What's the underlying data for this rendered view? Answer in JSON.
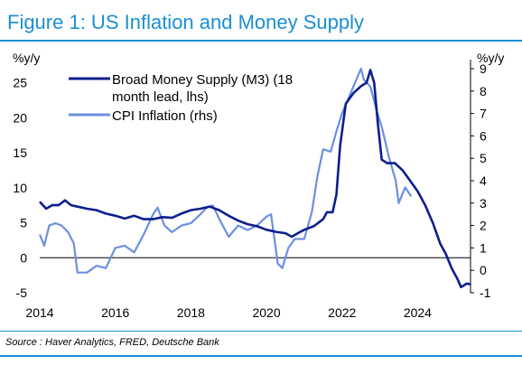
{
  "title": "Figure 1: US Inflation and Money Supply",
  "source": "Source : Haver Analytics, FRED, Deutsche Bank",
  "colors": {
    "title": "#1b8fd4",
    "m3": "#0d1f8c",
    "cpi": "#6d8fe0"
  },
  "chart_data": {
    "type": "line",
    "ylabel_left": "%y/y",
    "ylabel_right": "%y/y",
    "xlim": [
      2014,
      2025.4
    ],
    "ylim_left": [
      -5,
      27
    ],
    "ylim_right": [
      -1,
      9
    ],
    "x_ticks": [
      "2014",
      "2016",
      "2018",
      "2020",
      "2022",
      "2024"
    ],
    "y_left_ticks": [
      "-5",
      "0",
      "5",
      "10",
      "15",
      "20",
      "25"
    ],
    "y_right_ticks": [
      "-1",
      "0",
      "1",
      "2",
      "3",
      "4",
      "5",
      "6",
      "7",
      "8",
      "9"
    ],
    "legend_position": "top-left",
    "series": [
      {
        "name": "Broad Money Supply (M3) (18 month lead, lhs)",
        "axis": "left",
        "points": [
          [
            2014.0,
            8.0
          ],
          [
            2014.17,
            7.0
          ],
          [
            2014.33,
            7.5
          ],
          [
            2014.5,
            7.5
          ],
          [
            2014.67,
            8.2
          ],
          [
            2014.83,
            7.5
          ],
          [
            2015.0,
            7.3
          ],
          [
            2015.25,
            7.0
          ],
          [
            2015.5,
            6.8
          ],
          [
            2015.75,
            6.3
          ],
          [
            2016.0,
            6.0
          ],
          [
            2016.25,
            5.6
          ],
          [
            2016.5,
            6.0
          ],
          [
            2016.75,
            5.5
          ],
          [
            2017.0,
            5.5
          ],
          [
            2017.25,
            5.8
          ],
          [
            2017.5,
            5.7
          ],
          [
            2017.75,
            6.3
          ],
          [
            2018.0,
            6.8
          ],
          [
            2018.25,
            7.0
          ],
          [
            2018.5,
            7.3
          ],
          [
            2018.75,
            6.8
          ],
          [
            2019.0,
            6.0
          ],
          [
            2019.25,
            5.3
          ],
          [
            2019.5,
            4.8
          ],
          [
            2019.75,
            4.5
          ],
          [
            2020.0,
            4.0
          ],
          [
            2020.25,
            3.7
          ],
          [
            2020.5,
            3.5
          ],
          [
            2020.67,
            3.0
          ],
          [
            2020.83,
            3.5
          ],
          [
            2021.0,
            4.0
          ],
          [
            2021.25,
            4.5
          ],
          [
            2021.5,
            5.5
          ],
          [
            2021.6,
            6.5
          ],
          [
            2021.75,
            6.5
          ],
          [
            2021.85,
            9.0
          ],
          [
            2021.95,
            16.0
          ],
          [
            2022.1,
            22.0
          ],
          [
            2022.3,
            23.5
          ],
          [
            2022.5,
            24.5
          ],
          [
            2022.65,
            25.0
          ],
          [
            2022.75,
            26.8
          ],
          [
            2022.85,
            25.0
          ],
          [
            2022.95,
            19.0
          ],
          [
            2023.05,
            14.0
          ],
          [
            2023.2,
            13.5
          ],
          [
            2023.4,
            13.5
          ],
          [
            2023.6,
            12.5
          ],
          [
            2023.8,
            11.0
          ],
          [
            2024.0,
            9.5
          ],
          [
            2024.2,
            7.5
          ],
          [
            2024.4,
            5.0
          ],
          [
            2024.6,
            2.0
          ],
          [
            2024.75,
            0.5
          ],
          [
            2024.9,
            -1.5
          ],
          [
            2025.05,
            -3.0
          ],
          [
            2025.15,
            -4.2
          ],
          [
            2025.3,
            -3.7
          ],
          [
            2025.4,
            -3.8
          ]
        ]
      },
      {
        "name": "CPI Inflation (rhs)",
        "axis": "right",
        "points": [
          [
            2014.0,
            1.6
          ],
          [
            2014.12,
            1.1
          ],
          [
            2014.25,
            2.0
          ],
          [
            2014.42,
            2.1
          ],
          [
            2014.58,
            2.0
          ],
          [
            2014.75,
            1.7
          ],
          [
            2014.9,
            1.2
          ],
          [
            2015.0,
            -0.1
          ],
          [
            2015.25,
            -0.1
          ],
          [
            2015.5,
            0.2
          ],
          [
            2015.75,
            0.1
          ],
          [
            2016.0,
            1.0
          ],
          [
            2016.25,
            1.1
          ],
          [
            2016.5,
            0.8
          ],
          [
            2016.75,
            1.6
          ],
          [
            2017.0,
            2.5
          ],
          [
            2017.12,
            2.8
          ],
          [
            2017.3,
            2.0
          ],
          [
            2017.5,
            1.7
          ],
          [
            2017.75,
            2.0
          ],
          [
            2018.0,
            2.1
          ],
          [
            2018.25,
            2.5
          ],
          [
            2018.42,
            2.8
          ],
          [
            2018.58,
            2.9
          ],
          [
            2018.75,
            2.3
          ],
          [
            2019.0,
            1.5
          ],
          [
            2019.25,
            2.0
          ],
          [
            2019.5,
            1.8
          ],
          [
            2019.75,
            2.0
          ],
          [
            2020.0,
            2.4
          ],
          [
            2020.12,
            2.5
          ],
          [
            2020.3,
            0.3
          ],
          [
            2020.42,
            0.1
          ],
          [
            2020.58,
            1.0
          ],
          [
            2020.75,
            1.4
          ],
          [
            2021.0,
            1.4
          ],
          [
            2021.2,
            2.6
          ],
          [
            2021.35,
            4.2
          ],
          [
            2021.5,
            5.4
          ],
          [
            2021.7,
            5.3
          ],
          [
            2021.85,
            6.2
          ],
          [
            2022.0,
            7.0
          ],
          [
            2022.25,
            8.0
          ],
          [
            2022.5,
            9.0
          ],
          [
            2022.58,
            8.5
          ],
          [
            2022.75,
            8.2
          ],
          [
            2022.92,
            7.1
          ],
          [
            2023.05,
            6.4
          ],
          [
            2023.25,
            5.0
          ],
          [
            2023.42,
            4.0
          ],
          [
            2023.5,
            3.0
          ],
          [
            2023.67,
            3.7
          ],
          [
            2023.83,
            3.3
          ]
        ]
      }
    ]
  }
}
